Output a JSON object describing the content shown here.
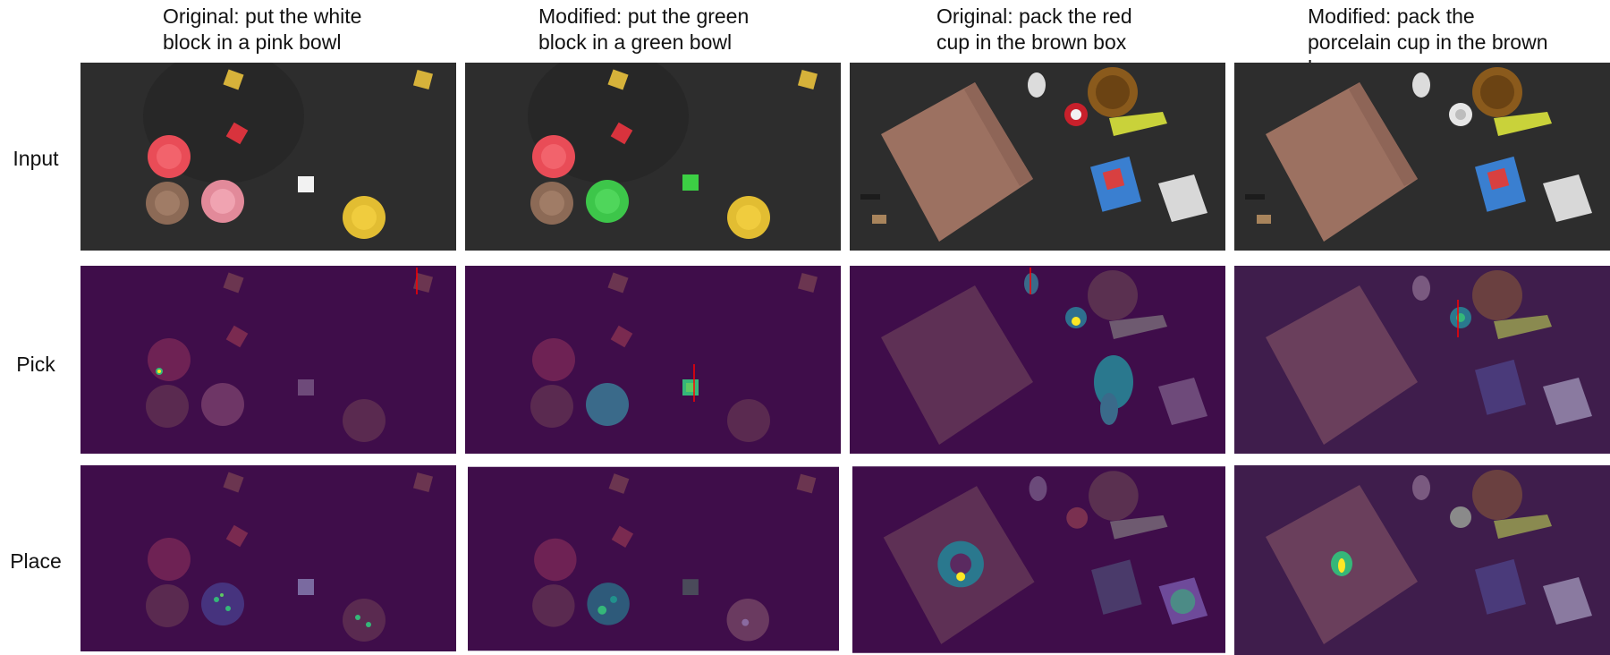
{
  "columns": [
    {
      "title": "Original: put the white\nblock in a pink bowl"
    },
    {
      "title": "Modified: put the green\nblock in a green bowl"
    },
    {
      "title": "Original: pack the red\ncup in the brown box"
    },
    {
      "title": "Modified: pack the\nporcelain cup in the brown\nbox"
    }
  ],
  "rows": [
    {
      "label": "Input"
    },
    {
      "label": "Pick"
    },
    {
      "label": "Place"
    }
  ],
  "colors": {
    "input_background": "#2d2d2d",
    "heatmap_background": "#3f0d4a",
    "heat_high": "#fde725",
    "heat_mid": "#35b779",
    "pick_marker": "#ff0000"
  }
}
